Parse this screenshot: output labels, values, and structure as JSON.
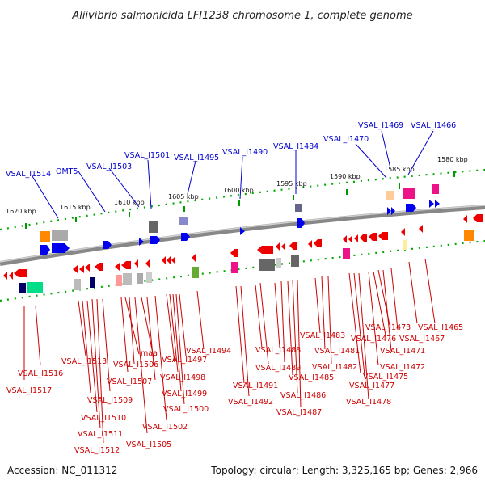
{
  "title": "Aliivibrio salmonicida LFI1238 chromosome 1, complete genome",
  "footer": {
    "accession": "Accession: NC_011312",
    "topology": "Topology: circular; Length: 3,325,165 bp; Genes: 2,966"
  },
  "scale_labels": [
    "1620 kbp",
    "1615 kbp",
    "1610 kbp",
    "1605 kbp",
    "1600 kbp",
    "1595 kbp",
    "1590 kbp",
    "1585 kbp",
    "1580 kbp"
  ],
  "forward_gene_labels": [
    "VSAL_I1514",
    "OMT5",
    "VSAL_I1503",
    "VSAL_I1501",
    "VSAL_I1495",
    "VSAL_I1490",
    "VSAL_I1484",
    "VSAL_I1470",
    "VSAL_I1469",
    "VSAL_I1466"
  ],
  "reverse_gene_labels": [
    "VSAL_I1516",
    "VSAL_I1517",
    "VSAL_I1513",
    "VSAL_I1509",
    "VSAL_I1510",
    "VSAL_I1511",
    "VSAL_I1512",
    "maa",
    "VSAL_I1506",
    "VSAL_I1507",
    "VSAL_I1505",
    "VSAL_I1497",
    "VSAL_I1498",
    "VSAL_I1499",
    "VSAL_I1500",
    "VSAL_I1502",
    "VSAL_I1494",
    "VSAL_I1488",
    "VSAL_I1489",
    "VSAL_I1491",
    "VSAL_I1492",
    "VSAL_I1483",
    "VSAL_I1481",
    "VSAL_I1485",
    "VSAL_I1486",
    "VSAL_I1487",
    "VSAL_I1482",
    "VSAL_I1473",
    "VSAL_I1476",
    "VSAL_I1467",
    "VSAL_I1465",
    "VSAL_I1471",
    "VSAL_I1472",
    "VSAL_I1475",
    "VSAL_I1477",
    "VSAL_I1478"
  ],
  "colors": {
    "forward_label": "#0000cc",
    "reverse_label": "#cc0000",
    "forward_gene": "#0000ee",
    "reverse_gene": "#ee0000",
    "backbone": "#888888",
    "scale_dots": "#00aa00"
  }
}
